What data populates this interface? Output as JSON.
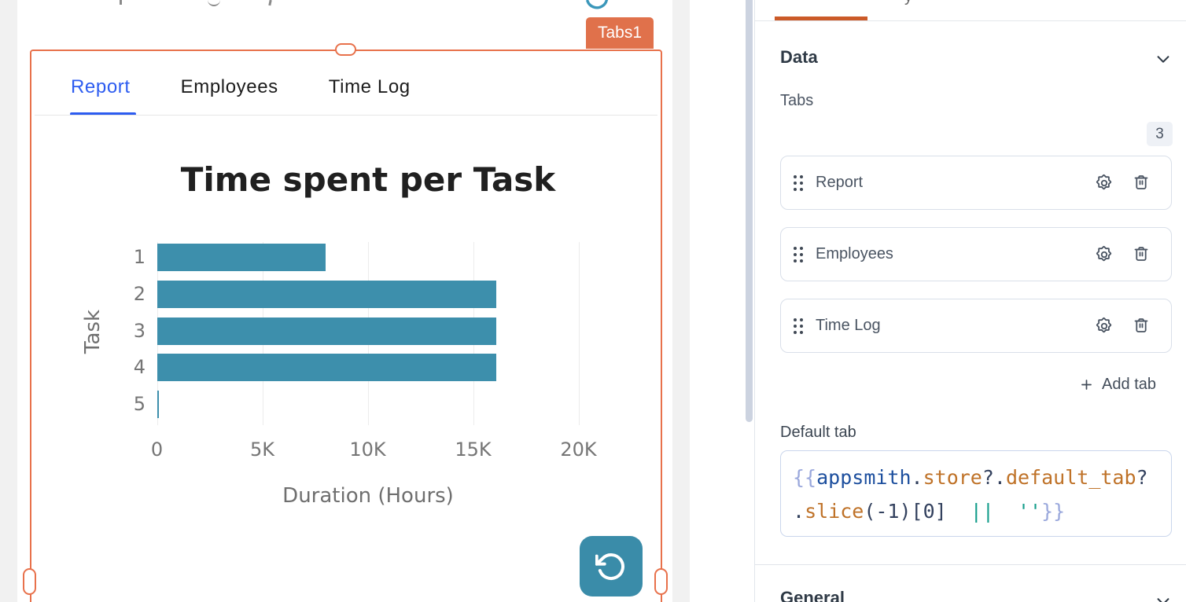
{
  "canvas": {
    "widget_name_tag": "Tabs1"
  },
  "widget_tabs": {
    "items": [
      "Report",
      "Employees",
      "Time Log"
    ],
    "active": "Report"
  },
  "chart_data": {
    "type": "bar",
    "orientation": "horizontal",
    "title": "Time spent per Task",
    "categories": [
      "1",
      "2",
      "3",
      "4",
      "5"
    ],
    "values": [
      8000,
      16100,
      16100,
      16100,
      60
    ],
    "xlabel": "Duration (Hours)",
    "ylabel": "Task",
    "xlim": [
      0,
      20000
    ],
    "x_tick_values": [
      0,
      5000,
      10000,
      15000,
      20000
    ],
    "x_tick_labels": [
      "0",
      "5K",
      "10K",
      "15K",
      "20K"
    ],
    "bar_color": "#3D8FAC",
    "grid": true,
    "legend": false
  },
  "property_pane": {
    "style_tab_partial": "y",
    "sections": {
      "data": "Data",
      "general": "General"
    },
    "tabs_label": "Tabs",
    "tabs_count": "3",
    "tab_items": [
      {
        "label": "Report"
      },
      {
        "label": "Employees"
      },
      {
        "label": "Time Log"
      }
    ],
    "add_tab_label": "Add tab",
    "default_tab_label": "Default tab",
    "code": {
      "lines": [
        [
          {
            "t": "{{",
            "c": "brace"
          },
          {
            "t": "appsmith",
            "c": "kw"
          },
          {
            "t": ".",
            "c": "plain"
          },
          {
            "t": "store",
            "c": "prop"
          },
          {
            "t": "?.",
            "c": "plain"
          },
          {
            "t": "default_tab",
            "c": "prop"
          },
          {
            "t": "?",
            "c": "plain"
          }
        ],
        [
          {
            "t": ".",
            "c": "plain"
          },
          {
            "t": "slice",
            "c": "prop"
          },
          {
            "t": "(-1)[0]",
            "c": "plain"
          },
          {
            "t": "  ",
            "c": "plain"
          },
          {
            "t": "||",
            "c": "op"
          },
          {
            "t": "  ''",
            "c": "str"
          },
          {
            "t": "}}",
            "c": "brace"
          }
        ]
      ]
    }
  },
  "colors": {
    "selection_orange": "#E8714B",
    "widget_tag_orange": "#E0714B",
    "pane_tab_indicator": "#CB5A28",
    "active_tab_blue": "#2D5CF0",
    "chart_bar_teal": "#3D8FAC",
    "refresh_button_teal": "#3A8CA9",
    "scrollbar": "#CCD3E0"
  }
}
